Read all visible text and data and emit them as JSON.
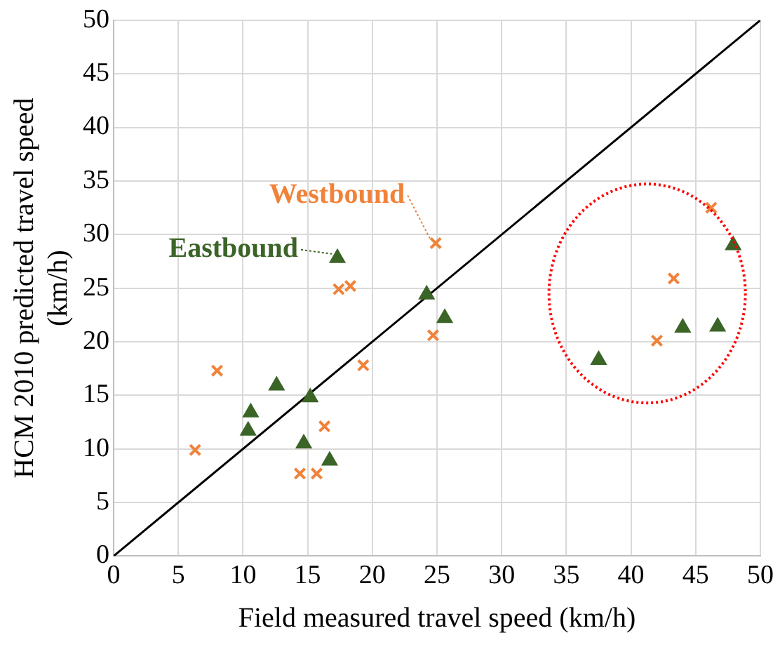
{
  "chart_data": {
    "type": "scatter",
    "xlabel": "Field measured travel speed (km/h)",
    "ylabel": "HCM 2010 predicted travel speed\n(km/h)",
    "xlim": [
      0,
      50
    ],
    "ylim": [
      0,
      50
    ],
    "xticks": [
      0,
      5,
      10,
      15,
      20,
      25,
      30,
      35,
      40,
      45,
      50
    ],
    "yticks": [
      0,
      5,
      10,
      15,
      20,
      25,
      30,
      35,
      40,
      45,
      50
    ],
    "grid": true,
    "series": [
      {
        "name": "Eastbound",
        "color": "#3b6427",
        "marker": "triangle",
        "x": [
          17.3,
          24.2,
          25.6,
          12.6,
          15.2,
          10.6,
          10.4,
          14.7,
          16.7,
          37.5,
          44.0,
          46.7,
          47.9
        ],
        "values": [
          27.8,
          24.4,
          22.2,
          15.9,
          14.8,
          13.4,
          11.7,
          10.5,
          8.9,
          18.3,
          21.3,
          21.4,
          29.0
        ]
      },
      {
        "name": "Westbound",
        "color": "#f0823a",
        "marker": "cross",
        "x": [
          24.9,
          17.4,
          18.3,
          24.7,
          19.3,
          8.0,
          6.3,
          16.3,
          14.4,
          15.7,
          46.2,
          43.3,
          42.0
        ],
        "values": [
          29.2,
          24.9,
          25.2,
          20.6,
          17.8,
          17.3,
          9.9,
          12.1,
          7.7,
          7.7,
          32.5,
          25.9,
          20.1
        ]
      },
      {
        "type": "line",
        "color": "#000000",
        "marker": "none",
        "x": [
          0,
          50
        ],
        "values": [
          0,
          50
        ]
      }
    ]
  }
}
